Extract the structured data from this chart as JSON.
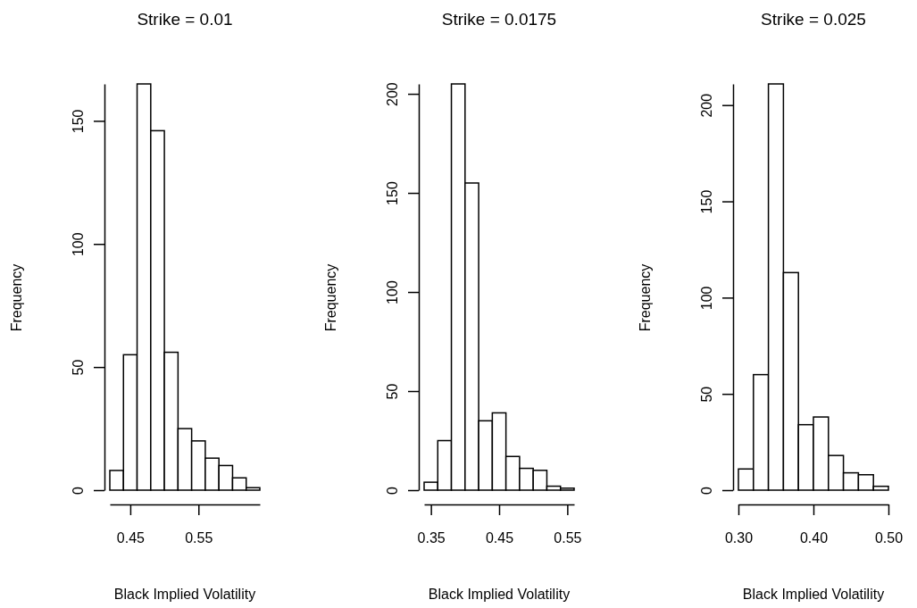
{
  "chart_data": [
    {
      "type": "histogram",
      "title": "Strike = 0.01",
      "xlabel": "Black Implied Volatility",
      "ylabel": "Frequency",
      "bins": [
        0.42,
        0.44,
        0.46,
        0.48,
        0.5,
        0.52,
        0.54,
        0.56,
        0.58,
        0.6,
        0.62,
        0.64
      ],
      "values": [
        8,
        55,
        165,
        146,
        56,
        25,
        20,
        13,
        10,
        5,
        1
      ],
      "xlim": [
        0.42,
        0.64
      ],
      "ylim": [
        0,
        165
      ],
      "xticks": [
        0.45,
        0.55
      ],
      "yticks": [
        0,
        50,
        100,
        150
      ]
    },
    {
      "type": "histogram",
      "title": "Strike = 0.0175",
      "xlabel": "Black Implied Volatility",
      "ylabel": "Frequency",
      "bins": [
        0.34,
        0.36,
        0.38,
        0.4,
        0.42,
        0.44,
        0.46,
        0.48,
        0.5,
        0.52,
        0.54,
        0.56
      ],
      "values": [
        4,
        25,
        205,
        155,
        35,
        39,
        17,
        11,
        10,
        2,
        1
      ],
      "xlim": [
        0.34,
        0.56
      ],
      "ylim": [
        0,
        205
      ],
      "xticks": [
        0.35,
        0.45,
        0.55
      ],
      "yticks": [
        0,
        50,
        100,
        150,
        200
      ]
    },
    {
      "type": "histogram",
      "title": "Strike = 0.025",
      "xlabel": "Black Implied Volatility",
      "ylabel": "Frequency",
      "bins": [
        0.3,
        0.32,
        0.34,
        0.36,
        0.38,
        0.4,
        0.42,
        0.44,
        0.46,
        0.48,
        0.5
      ],
      "values": [
        11,
        60,
        211,
        113,
        34,
        38,
        18,
        9,
        8,
        2
      ],
      "xlim": [
        0.3,
        0.5
      ],
      "ylim": [
        0,
        211
      ],
      "xticks": [
        {
          "value": 0.3,
          "label": "0.30"
        },
        {
          "value": 0.4,
          "label": "0.40"
        },
        {
          "value": 0.5,
          "label": "0.50"
        }
      ],
      "yticks": [
        0,
        50,
        100,
        150,
        200
      ]
    }
  ]
}
